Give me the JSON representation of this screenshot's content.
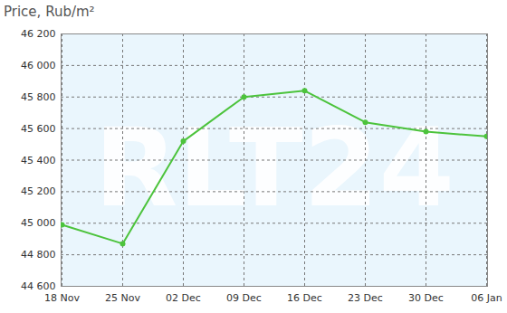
{
  "chart_data": {
    "type": "line",
    "title": "Price, Rub/m²",
    "categories": [
      "18 Nov",
      "25 Nov",
      "02 Dec",
      "09 Dec",
      "16 Dec",
      "23 Dec",
      "30 Dec",
      "06 Jan"
    ],
    "values": [
      44990,
      44870,
      45520,
      45800,
      45840,
      45640,
      45580,
      45550
    ],
    "color": "#4cc33c",
    "marker": "circle",
    "ylim": [
      44600,
      46200
    ],
    "yticks": [
      {
        "value": 44600,
        "label": "44 600"
      },
      {
        "value": 44800,
        "label": "44 800"
      },
      {
        "value": 45000,
        "label": "45 000"
      },
      {
        "value": 45200,
        "label": "45 200"
      },
      {
        "value": 45400,
        "label": "45 400"
      },
      {
        "value": 45600,
        "label": "45 600"
      },
      {
        "value": 45800,
        "label": "45 800"
      },
      {
        "value": 46000,
        "label": "46 000"
      },
      {
        "value": 46200,
        "label": "46 200"
      }
    ],
    "grid": true,
    "annotations": [
      "RLT24"
    ]
  }
}
